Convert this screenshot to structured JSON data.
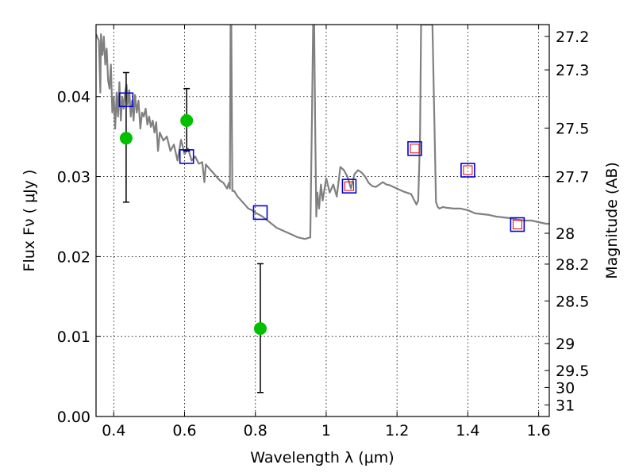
{
  "chart_data": {
    "type": "scatter",
    "xlabel": "Wavelength  λ (μm)",
    "ylabel": "Flux  Fν  ( μJy )",
    "ylabel_right": "Magnitude (AB)",
    "xlim": [
      0.35,
      1.63
    ],
    "ylim": [
      0.0,
      0.049
    ],
    "grid": true,
    "x_ticks": [
      {
        "value": 0.4,
        "label": "0.4"
      },
      {
        "value": 0.6,
        "label": "0.6"
      },
      {
        "value": 0.8,
        "label": "0.8"
      },
      {
        "value": 1.0,
        "label": "1"
      },
      {
        "value": 1.2,
        "label": "1.2"
      },
      {
        "value": 1.4,
        "label": "1.4"
      },
      {
        "value": 1.6,
        "label": "1.6"
      }
    ],
    "y_ticks": [
      {
        "value": 0.0,
        "label": "0.00"
      },
      {
        "value": 0.01,
        "label": "0.01"
      },
      {
        "value": 0.02,
        "label": "0.02"
      },
      {
        "value": 0.03,
        "label": "0.03"
      },
      {
        "value": 0.04,
        "label": "0.04"
      }
    ],
    "right_ticks": [
      {
        "flux": 0.04752,
        "label": "27.2"
      },
      {
        "flux": 0.04334,
        "label": "27.3"
      },
      {
        "flux": 0.03606,
        "label": "27.5"
      },
      {
        "flux": 0.02999,
        "label": "27.7"
      },
      {
        "flux": 0.02291,
        "label": "28"
      },
      {
        "flux": 0.01905,
        "label": "28.2"
      },
      {
        "flux": 0.01445,
        "label": "28.5"
      },
      {
        "flux": 0.00912,
        "label": "29"
      },
      {
        "flux": 0.00575,
        "label": "29.5"
      },
      {
        "flux": 0.00363,
        "label": "30"
      },
      {
        "flux": 0.00145,
        "label": "31"
      }
    ],
    "observed": {
      "color": "#00c000",
      "points": [
        {
          "x": 0.435,
          "y": 0.0348,
          "ylo": 0.0268,
          "yhi": 0.043
        },
        {
          "x": 0.606,
          "y": 0.037,
          "ylo": 0.0332,
          "yhi": 0.041
        },
        {
          "x": 0.814,
          "y": 0.011,
          "ylo": 0.003,
          "yhi": 0.0191
        }
      ]
    },
    "model_photometry": {
      "color": "#0000dd",
      "points": [
        {
          "x": 0.435,
          "y": 0.0396
        },
        {
          "x": 0.606,
          "y": 0.0325
        },
        {
          "x": 0.814,
          "y": 0.0255
        },
        {
          "x": 1.065,
          "y": 0.0288
        },
        {
          "x": 1.25,
          "y": 0.0335
        },
        {
          "x": 1.4,
          "y": 0.0308
        },
        {
          "x": 1.54,
          "y": 0.024
        }
      ]
    },
    "model_photometry_ir": {
      "color": "#dd0000",
      "points": [
        {
          "x": 1.065,
          "y": 0.0288
        },
        {
          "x": 1.25,
          "y": 0.0335
        },
        {
          "x": 1.4,
          "y": 0.0308
        },
        {
          "x": 1.54,
          "y": 0.024
        }
      ]
    },
    "sed": {
      "color": "#808080",
      "x": [
        0.35,
        0.358,
        0.362,
        0.364,
        0.368,
        0.372,
        0.376,
        0.38,
        0.384,
        0.388,
        0.392,
        0.396,
        0.4,
        0.404,
        0.408,
        0.412,
        0.416,
        0.42,
        0.424,
        0.428,
        0.432,
        0.436,
        0.44,
        0.444,
        0.448,
        0.452,
        0.456,
        0.46,
        0.465,
        0.47,
        0.475,
        0.48,
        0.485,
        0.49,
        0.495,
        0.5,
        0.505,
        0.51,
        0.515,
        0.52,
        0.525,
        0.53,
        0.54,
        0.55,
        0.56,
        0.57,
        0.58,
        0.59,
        0.6,
        0.61,
        0.62,
        0.63,
        0.64,
        0.65,
        0.656,
        0.66,
        0.67,
        0.68,
        0.69,
        0.7,
        0.71,
        0.72,
        0.725,
        0.728,
        0.73,
        0.732,
        0.735,
        0.74,
        0.75,
        0.76,
        0.77,
        0.78,
        0.79,
        0.8,
        0.82,
        0.84,
        0.86,
        0.88,
        0.9,
        0.92,
        0.94,
        0.955,
        0.96,
        0.963,
        0.966,
        0.969,
        0.972,
        0.975,
        0.98,
        0.985,
        0.99,
        1.0,
        1.01,
        1.02,
        1.03,
        1.04,
        1.05,
        1.06,
        1.07,
        1.08,
        1.09,
        1.1,
        1.11,
        1.12,
        1.13,
        1.14,
        1.15,
        1.16,
        1.17,
        1.18,
        1.2,
        1.22,
        1.24,
        1.255,
        1.26,
        1.265,
        1.268,
        1.27,
        1.3,
        1.31,
        1.315,
        1.32,
        1.33,
        1.34,
        1.36,
        1.38,
        1.4,
        1.42,
        1.44,
        1.46,
        1.48,
        1.5,
        1.52,
        1.54,
        1.56,
        1.58,
        1.6,
        1.62,
        1.63
      ],
      "y": [
        0.0478,
        0.047,
        0.0405,
        0.0478,
        0.0452,
        0.0475,
        0.044,
        0.046,
        0.042,
        0.041,
        0.044,
        0.038,
        0.04,
        0.036,
        0.0405,
        0.0375,
        0.0418,
        0.037,
        0.04,
        0.0385,
        0.0405,
        0.0415,
        0.039,
        0.0408,
        0.0375,
        0.0395,
        0.037,
        0.0402,
        0.038,
        0.0395,
        0.036,
        0.038,
        0.0375,
        0.0385,
        0.0365,
        0.0375,
        0.0362,
        0.037,
        0.0355,
        0.0368,
        0.0332,
        0.0355,
        0.0345,
        0.035,
        0.0332,
        0.034,
        0.032,
        0.0346,
        0.0328,
        0.0335,
        0.032,
        0.0325,
        0.0316,
        0.0318,
        0.0293,
        0.0315,
        0.031,
        0.0305,
        0.03,
        0.0295,
        0.0292,
        0.0285,
        0.0292,
        0.0285,
        0.049,
        0.049,
        0.0282,
        0.0282,
        0.0275,
        0.027,
        0.0265,
        0.026,
        0.0258,
        0.0255,
        0.025,
        0.0243,
        0.0236,
        0.0232,
        0.0228,
        0.0224,
        0.0222,
        0.0224,
        0.038,
        0.049,
        0.049,
        0.036,
        0.025,
        0.028,
        0.026,
        0.029,
        0.027,
        0.0298,
        0.028,
        0.029,
        0.0275,
        0.0312,
        0.0308,
        0.03,
        0.0285,
        0.0303,
        0.0308,
        0.0305,
        0.03,
        0.0292,
        0.0288,
        0.0287,
        0.029,
        0.0293,
        0.029,
        0.0289,
        0.0285,
        0.0281,
        0.0278,
        0.0265,
        0.027,
        0.035,
        0.049,
        0.049,
        0.049,
        0.0268,
        0.0262,
        0.026,
        0.0262,
        0.0261,
        0.026,
        0.026,
        0.0258,
        0.0254,
        0.0253,
        0.0252,
        0.025,
        0.0249,
        0.0248,
        0.0246,
        0.0245,
        0.0245,
        0.0243,
        0.0241,
        0.0241
      ]
    }
  }
}
